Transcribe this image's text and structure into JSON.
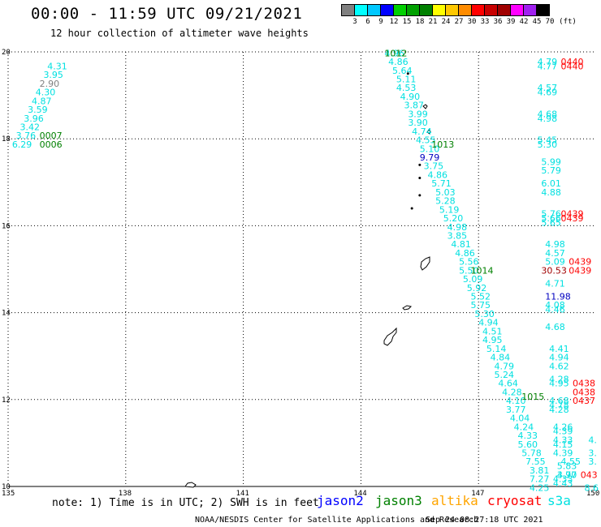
{
  "header": {
    "title": "00:00 - 11:59 UTC 09/21/2021",
    "subtitle": "12 hour collection of altimeter wave heights"
  },
  "colorbar": {
    "colors": [
      "#808080",
      "#00ffff",
      "#00c8ff",
      "#0000ff",
      "#00d000",
      "#00a000",
      "#008000",
      "#ffff00",
      "#ffc800",
      "#ff8c00",
      "#ff0000",
      "#c80000",
      "#a00000",
      "#ff00ff",
      "#a020f0",
      "#000000"
    ],
    "labels": [
      "3",
      "6",
      "9",
      "12",
      "15",
      "18",
      "21",
      "24",
      "27",
      "30",
      "33",
      "36",
      "39",
      "42",
      "45",
      "70",
      "(ft)"
    ]
  },
  "footer": {
    "note": "note: 1) Time is in UTC; 2) SWH is in feet",
    "credit": "NOAA/NESDIS Center for Satellite Applications and Research",
    "stamp": "Sep 24 08:27:18 UTC 2021"
  },
  "legend": [
    {
      "name": "jason2",
      "color": "#0000ff"
    },
    {
      "name": "jason3",
      "color": "#008000"
    },
    {
      "name": "altika",
      "color": "#ffa500"
    },
    {
      "name": "cryosat",
      "color": "#ff0000"
    },
    {
      "name": "s3a",
      "color": "#00e0e0"
    }
  ],
  "map": {
    "lon_range": [
      135,
      150
    ],
    "lat_range": [
      10,
      20
    ],
    "lon_ticks": [
      "135",
      "138",
      "141",
      "144",
      "147",
      "150"
    ],
    "lat_ticks": [
      "10",
      "12",
      "14",
      "16",
      "18",
      "20"
    ],
    "grid": "dotted",
    "labels": [
      {
        "lon": 136.0,
        "lat": 19.6,
        "text": "4.31",
        "color": "#00e0e0"
      },
      {
        "lon": 135.9,
        "lat": 19.4,
        "text": "3.95",
        "color": "#00e0e0"
      },
      {
        "lon": 135.8,
        "lat": 19.2,
        "text": "2.90",
        "color": "#808080"
      },
      {
        "lon": 135.7,
        "lat": 19.0,
        "text": "4.30",
        "color": "#00e0e0"
      },
      {
        "lon": 135.6,
        "lat": 18.8,
        "text": "4.87",
        "color": "#00e0e0"
      },
      {
        "lon": 135.5,
        "lat": 18.6,
        "text": "3.59",
        "color": "#00e0e0"
      },
      {
        "lon": 135.4,
        "lat": 18.4,
        "text": "3.96",
        "color": "#00e0e0"
      },
      {
        "lon": 135.3,
        "lat": 18.2,
        "text": "3.42",
        "color": "#00e0e0"
      },
      {
        "lon": 135.2,
        "lat": 18.0,
        "text": "3.76",
        "color": "#00e0e0"
      },
      {
        "lon": 135.1,
        "lat": 17.8,
        "text": "6.29",
        "color": "#00e0e0"
      },
      {
        "lon": 135.8,
        "lat": 18.0,
        "text": "0007",
        "color": "#008000"
      },
      {
        "lon": 135.8,
        "lat": 17.8,
        "text": "0006",
        "color": "#008000"
      },
      {
        "lon": 144.6,
        "lat": 19.9,
        "text": "4.96",
        "color": "#00e0e0"
      },
      {
        "lon": 144.7,
        "lat": 19.7,
        "text": "4.86",
        "color": "#00e0e0"
      },
      {
        "lon": 144.8,
        "lat": 19.5,
        "text": "5.64",
        "color": "#00e0e0"
      },
      {
        "lon": 144.9,
        "lat": 19.3,
        "text": "5.11",
        "color": "#00e0e0"
      },
      {
        "lon": 144.9,
        "lat": 19.1,
        "text": "4.53",
        "color": "#00e0e0"
      },
      {
        "lon": 145.0,
        "lat": 18.9,
        "text": "4.90",
        "color": "#00e0e0"
      },
      {
        "lon": 145.1,
        "lat": 18.7,
        "text": "3.87",
        "color": "#00e0e0"
      },
      {
        "lon": 145.2,
        "lat": 18.5,
        "text": "3.99",
        "color": "#00e0e0"
      },
      {
        "lon": 145.2,
        "lat": 18.3,
        "text": "3.90",
        "color": "#00e0e0"
      },
      {
        "lon": 145.3,
        "lat": 18.1,
        "text": "4.74",
        "color": "#00e0e0"
      },
      {
        "lon": 145.4,
        "lat": 17.9,
        "text": "4.55",
        "color": "#00e0e0"
      },
      {
        "lon": 145.5,
        "lat": 17.7,
        "text": "5.10",
        "color": "#00e0e0"
      },
      {
        "lon": 145.5,
        "lat": 17.5,
        "text": "9.79",
        "color": "#0000c0"
      },
      {
        "lon": 145.6,
        "lat": 17.3,
        "text": "3.75",
        "color": "#00e0e0"
      },
      {
        "lon": 145.7,
        "lat": 17.1,
        "text": "4.86",
        "color": "#00e0e0"
      },
      {
        "lon": 145.8,
        "lat": 16.9,
        "text": "5.71",
        "color": "#00e0e0"
      },
      {
        "lon": 145.9,
        "lat": 16.7,
        "text": "5.03",
        "color": "#00e0e0"
      },
      {
        "lon": 145.9,
        "lat": 16.5,
        "text": "5.28",
        "color": "#00e0e0"
      },
      {
        "lon": 146.0,
        "lat": 16.3,
        "text": "5.19",
        "color": "#00e0e0"
      },
      {
        "lon": 146.1,
        "lat": 16.1,
        "text": "5.20",
        "color": "#00e0e0"
      },
      {
        "lon": 146.2,
        "lat": 15.9,
        "text": "4.98",
        "color": "#00e0e0"
      },
      {
        "lon": 146.2,
        "lat": 15.7,
        "text": "3.85",
        "color": "#00e0e0"
      },
      {
        "lon": 146.3,
        "lat": 15.5,
        "text": "4.81",
        "color": "#00e0e0"
      },
      {
        "lon": 146.4,
        "lat": 15.3,
        "text": "4.86",
        "color": "#00e0e0"
      },
      {
        "lon": 146.5,
        "lat": 15.1,
        "text": "5.56",
        "color": "#00e0e0"
      },
      {
        "lon": 146.5,
        "lat": 14.9,
        "text": "5.50",
        "color": "#00e0e0"
      },
      {
        "lon": 146.6,
        "lat": 14.7,
        "text": "5.09",
        "color": "#00e0e0"
      },
      {
        "lon": 146.7,
        "lat": 14.5,
        "text": "5.92",
        "color": "#00e0e0"
      },
      {
        "lon": 146.8,
        "lat": 14.3,
        "text": "5.52",
        "color": "#00e0e0"
      },
      {
        "lon": 146.8,
        "lat": 14.1,
        "text": "5.75",
        "color": "#00e0e0"
      },
      {
        "lon": 146.9,
        "lat": 13.9,
        "text": "5.30",
        "color": "#00e0e0"
      },
      {
        "lon": 147.0,
        "lat": 13.7,
        "text": "4.94",
        "color": "#00e0e0"
      },
      {
        "lon": 147.1,
        "lat": 13.5,
        "text": "4.51",
        "color": "#00e0e0"
      },
      {
        "lon": 147.1,
        "lat": 13.3,
        "text": "4.95",
        "color": "#00e0e0"
      },
      {
        "lon": 147.2,
        "lat": 13.1,
        "text": "5.14",
        "color": "#00e0e0"
      },
      {
        "lon": 147.3,
        "lat": 12.9,
        "text": "4.84",
        "color": "#00e0e0"
      },
      {
        "lon": 147.4,
        "lat": 12.7,
        "text": "4.79",
        "color": "#00e0e0"
      },
      {
        "lon": 147.4,
        "lat": 12.5,
        "text": "5.24",
        "color": "#00e0e0"
      },
      {
        "lon": 147.5,
        "lat": 12.3,
        "text": "4.64",
        "color": "#00e0e0"
      },
      {
        "lon": 147.6,
        "lat": 12.1,
        "text": "4.28",
        "color": "#00e0e0"
      },
      {
        "lon": 147.7,
        "lat": 11.9,
        "text": "4.10",
        "color": "#00e0e0"
      },
      {
        "lon": 147.7,
        "lat": 11.7,
        "text": "3.77",
        "color": "#00e0e0"
      },
      {
        "lon": 147.8,
        "lat": 11.5,
        "text": "4.04",
        "color": "#00e0e0"
      },
      {
        "lon": 147.9,
        "lat": 11.3,
        "text": "4.24",
        "color": "#00e0e0"
      },
      {
        "lon": 148.0,
        "lat": 11.1,
        "text": "4.33",
        "color": "#00e0e0"
      },
      {
        "lon": 148.0,
        "lat": 10.9,
        "text": "5.60",
        "color": "#00e0e0"
      },
      {
        "lon": 148.1,
        "lat": 10.7,
        "text": "5.78",
        "color": "#00e0e0"
      },
      {
        "lon": 148.2,
        "lat": 10.5,
        "text": "7.55",
        "color": "#00e0e0"
      },
      {
        "lon": 148.3,
        "lat": 10.3,
        "text": "3.81",
        "color": "#00e0e0"
      },
      {
        "lon": 148.3,
        "lat": 10.1,
        "text": "7.27",
        "color": "#00e0e0"
      },
      {
        "lon": 148.3,
        "lat": 9.9,
        "text": "4.25",
        "color": "#00e0e0"
      },
      {
        "lon": 144.6,
        "lat": 19.9,
        "text": "1012",
        "color": "#008000"
      },
      {
        "lon": 145.8,
        "lat": 17.8,
        "text": "1013",
        "color": "#008000"
      },
      {
        "lon": 146.8,
        "lat": 14.9,
        "text": "1014",
        "color": "#008000"
      },
      {
        "lon": 148.1,
        "lat": 12.0,
        "text": "1015",
        "color": "#008000"
      },
      {
        "lon": 148.5,
        "lat": 19.7,
        "text": "4.79",
        "color": "#00e0e0"
      },
      {
        "lon": 148.5,
        "lat": 19.6,
        "text": "4.77",
        "color": "#00e0e0"
      },
      {
        "lon": 148.5,
        "lat": 19.1,
        "text": "4.57",
        "color": "#00e0e0"
      },
      {
        "lon": 148.5,
        "lat": 19.0,
        "text": "4.69",
        "color": "#00e0e0"
      },
      {
        "lon": 148.5,
        "lat": 18.5,
        "text": "4.68",
        "color": "#00e0e0"
      },
      {
        "lon": 148.5,
        "lat": 18.4,
        "text": "4.98",
        "color": "#00e0e0"
      },
      {
        "lon": 148.5,
        "lat": 17.9,
        "text": "5.45",
        "color": "#00e0e0"
      },
      {
        "lon": 148.5,
        "lat": 17.8,
        "text": "5.30",
        "color": "#00e0e0"
      },
      {
        "lon": 148.6,
        "lat": 17.4,
        "text": "5.99",
        "color": "#00e0e0"
      },
      {
        "lon": 148.6,
        "lat": 17.2,
        "text": "5.79",
        "color": "#00e0e0"
      },
      {
        "lon": 148.6,
        "lat": 16.9,
        "text": "6.01",
        "color": "#00e0e0"
      },
      {
        "lon": 148.6,
        "lat": 16.7,
        "text": "4.88",
        "color": "#00e0e0"
      },
      {
        "lon": 148.6,
        "lat": 16.2,
        "text": "5.76",
        "color": "#00e0e0"
      },
      {
        "lon": 148.6,
        "lat": 16.1,
        "text": "5.66",
        "color": "#00e0e0"
      },
      {
        "lon": 148.6,
        "lat": 16.0,
        "text": "5.65",
        "color": "#00e0e0"
      },
      {
        "lon": 148.7,
        "lat": 15.5,
        "text": "4.98",
        "color": "#00e0e0"
      },
      {
        "lon": 148.7,
        "lat": 15.3,
        "text": "4.57",
        "color": "#00e0e0"
      },
      {
        "lon": 148.7,
        "lat": 15.1,
        "text": "5.09",
        "color": "#00e0e0"
      },
      {
        "lon": 148.6,
        "lat": 14.9,
        "text": "30.53",
        "color": "#a00000"
      },
      {
        "lon": 148.7,
        "lat": 14.6,
        "text": "4.71",
        "color": "#00e0e0"
      },
      {
        "lon": 148.7,
        "lat": 14.3,
        "text": "11.98",
        "color": "#0000c0"
      },
      {
        "lon": 148.7,
        "lat": 14.1,
        "text": "4.08",
        "color": "#00e0e0"
      },
      {
        "lon": 148.7,
        "lat": 14.0,
        "text": "4.46",
        "color": "#00e0e0"
      },
      {
        "lon": 148.7,
        "lat": 13.6,
        "text": "4.68",
        "color": "#00e0e0"
      },
      {
        "lon": 148.8,
        "lat": 13.1,
        "text": "4.41",
        "color": "#00e0e0"
      },
      {
        "lon": 148.8,
        "lat": 12.9,
        "text": "4.94",
        "color": "#00e0e0"
      },
      {
        "lon": 148.8,
        "lat": 12.7,
        "text": "4.62",
        "color": "#00e0e0"
      },
      {
        "lon": 148.8,
        "lat": 12.4,
        "text": "4.28",
        "color": "#00e0e0"
      },
      {
        "lon": 148.8,
        "lat": 12.3,
        "text": "4.95",
        "color": "#00e0e0"
      },
      {
        "lon": 148.8,
        "lat": 11.9,
        "text": "4.68",
        "color": "#00e0e0"
      },
      {
        "lon": 148.8,
        "lat": 11.8,
        "text": "4.78",
        "color": "#00e0e0"
      },
      {
        "lon": 148.8,
        "lat": 11.7,
        "text": "4.28",
        "color": "#00e0e0"
      },
      {
        "lon": 148.9,
        "lat": 11.3,
        "text": "4.26",
        "color": "#00e0e0"
      },
      {
        "lon": 148.9,
        "lat": 11.2,
        "text": "4.39",
        "color": "#00e0e0"
      },
      {
        "lon": 148.9,
        "lat": 11.0,
        "text": "4.33",
        "color": "#00e0e0"
      },
      {
        "lon": 148.9,
        "lat": 10.9,
        "text": "4.15",
        "color": "#00e0e0"
      },
      {
        "lon": 148.9,
        "lat": 10.7,
        "text": "4.39",
        "color": "#00e0e0"
      },
      {
        "lon": 149.0,
        "lat": 10.2,
        "text": "4.97",
        "color": "#00e0e0"
      },
      {
        "lon": 149.1,
        "lat": 10.5,
        "text": "4.55",
        "color": "#00e0e0"
      },
      {
        "lon": 149.0,
        "lat": 10.4,
        "text": "5.83",
        "color": "#00e0e0"
      },
      {
        "lon": 149.0,
        "lat": 10.2,
        "text": "3.70",
        "color": "#00e0e0"
      },
      {
        "lon": 148.9,
        "lat": 10.1,
        "text": "4.33",
        "color": "#00e0e0"
      },
      {
        "lon": 148.9,
        "lat": 10.0,
        "text": "4.43",
        "color": "#00e0e0"
      },
      {
        "lon": 149.8,
        "lat": 11.0,
        "text": "4.",
        "color": "#00e0e0"
      },
      {
        "lon": 149.8,
        "lat": 10.7,
        "text": "3.",
        "color": "#00e0e0"
      },
      {
        "lon": 149.8,
        "lat": 10.5,
        "text": "3.",
        "color": "#00e0e0"
      },
      {
        "lon": 149.7,
        "lat": 9.9,
        "text": "8.6",
        "color": "#00e0e0"
      },
      {
        "lon": 149.1,
        "lat": 19.7,
        "text": "0440",
        "color": "#ff0000"
      },
      {
        "lon": 149.1,
        "lat": 19.6,
        "text": "0440",
        "color": "#ff0000"
      },
      {
        "lon": 149.1,
        "lat": 16.2,
        "text": "0439",
        "color": "#ff0000"
      },
      {
        "lon": 149.1,
        "lat": 16.1,
        "text": "0439",
        "color": "#ff0000"
      },
      {
        "lon": 149.3,
        "lat": 15.1,
        "text": "0439",
        "color": "#ff0000"
      },
      {
        "lon": 149.3,
        "lat": 14.9,
        "text": "0439",
        "color": "#ff0000"
      },
      {
        "lon": 149.4,
        "lat": 12.3,
        "text": "0438",
        "color": "#ff0000"
      },
      {
        "lon": 149.4,
        "lat": 12.1,
        "text": "0438",
        "color": "#ff0000"
      },
      {
        "lon": 149.4,
        "lat": 11.9,
        "text": "0437",
        "color": "#ff0000"
      },
      {
        "lon": 149.6,
        "lat": 10.2,
        "text": "043",
        "color": "#ff0000"
      }
    ],
    "dots": [
      {
        "lon": 145.2,
        "lat": 19.5
      },
      {
        "lon": 145.5,
        "lat": 17.4
      },
      {
        "lon": 145.5,
        "lat": 17.1
      },
      {
        "lon": 145.5,
        "lat": 16.7
      },
      {
        "lon": 145.3,
        "lat": 16.4
      }
    ]
  }
}
